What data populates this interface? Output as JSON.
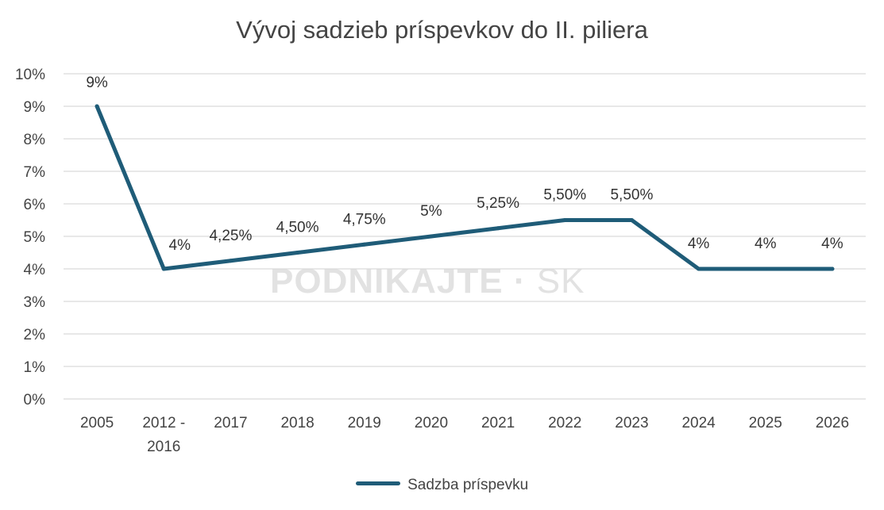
{
  "chart_data": {
    "type": "line",
    "title": "Vývoj sadzieb príspevkov do II. piliera",
    "categories": [
      "2005",
      "2012 - 2016",
      "2017",
      "2018",
      "2019",
      "2020",
      "2021",
      "2022",
      "2023",
      "2024",
      "2025",
      "2026"
    ],
    "series": [
      {
        "name": "Sadzba príspevku",
        "values": [
          9,
          4,
          4.25,
          4.5,
          4.75,
          5,
          5.25,
          5.5,
          5.5,
          4,
          4,
          4
        ],
        "data_labels": [
          "9%",
          "4%",
          "4,25%",
          "4,50%",
          "4,75%",
          "5%",
          "5,25%",
          "5,50%",
          "5,50%",
          "4%",
          "4%",
          "4%"
        ]
      }
    ],
    "ylim": [
      0,
      10
    ],
    "yticks": [
      "0%",
      "1%",
      "2%",
      "3%",
      "4%",
      "5%",
      "6%",
      "7%",
      "8%",
      "9%",
      "10%"
    ],
    "xlabel": "",
    "ylabel": "",
    "grid": true,
    "legend_position": "bottom",
    "colors": {
      "line": "#1f5c78",
      "grid": "#d9d9d9",
      "text": "#444444"
    }
  },
  "watermark": {
    "main": "PODNIKAJTE",
    "suffix": "SK"
  }
}
